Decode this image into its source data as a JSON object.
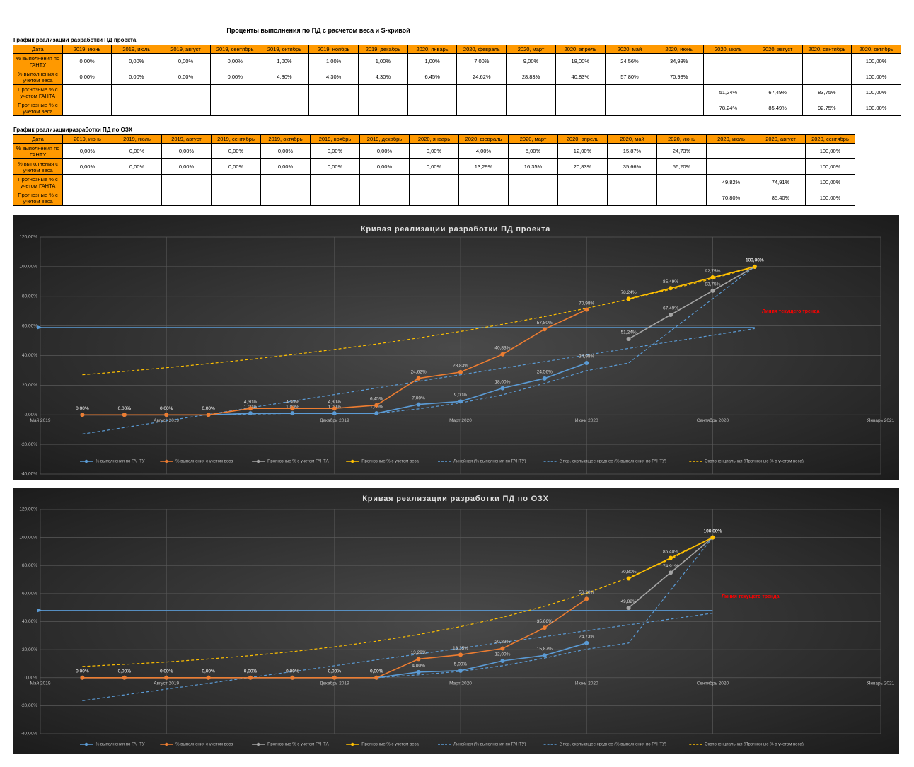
{
  "header": {
    "title": "Проценты выполнения по ПД с расчетом веса и S-кривой"
  },
  "tables": [
    {
      "title": "График реализации разработки ПД проекта",
      "header": [
        "Дата",
        "2019, июнь",
        "2019, июль",
        "2019, август",
        "2019, сентябрь",
        "2019, октябрь",
        "2019, ноябрь",
        "2019, декабрь",
        "2020, январь",
        "2020, февраль",
        "2020, март",
        "2020, апрель",
        "2020, май",
        "2020, июнь",
        "2020, июль",
        "2020, август",
        "2020, сентябрь",
        "2020, октябрь"
      ],
      "rows": [
        {
          "label": "% выполнения по ГАНТУ",
          "cells": [
            "0,00%",
            "0,00%",
            "0,00%",
            "0,00%",
            "1,00%",
            "1,00%",
            "1,00%",
            "1,00%",
            "7,00%",
            "9,00%",
            "18,00%",
            "24,56%",
            "34,98%",
            null,
            null,
            null,
            "100,00%"
          ]
        },
        {
          "label": "% выполнения с учетом веса",
          "cells": [
            "0,00%",
            "0,00%",
            "0,00%",
            "0,00%",
            "4,30%",
            "4,30%",
            "4,30%",
            "6,45%",
            "24,62%",
            "28,83%",
            "40,83%",
            "57,80%",
            "70,98%",
            null,
            null,
            null,
            "100,00%"
          ]
        },
        {
          "label": "Прогнозные % с учетом ГАНТА",
          "cells": [
            null,
            null,
            null,
            null,
            null,
            null,
            null,
            null,
            null,
            null,
            null,
            null,
            null,
            "51,24%",
            "67,49%",
            "83,75%",
            "100,00%"
          ]
        },
        {
          "label": "Прогнозные % с учетом веса",
          "cells": [
            null,
            null,
            null,
            null,
            null,
            null,
            null,
            null,
            null,
            null,
            null,
            null,
            null,
            "78,24%",
            "85,49%",
            "92,75%",
            "100,00%"
          ]
        }
      ]
    },
    {
      "title": "График реализацииразработки ПД по ОЗХ",
      "header": [
        "Дата",
        "2019, июнь",
        "2019, июль",
        "2019, август",
        "2019, сентябрь",
        "2019, октябрь",
        "2019, ноябрь",
        "2019, декабрь",
        "2020, январь",
        "2020, февраль",
        "2020, март",
        "2020, апрель",
        "2020, май",
        "2020, июнь",
        "2020, июль",
        "2020, август",
        "2020, сентябрь"
      ],
      "rows": [
        {
          "label": "% выполнения по ГАНТУ",
          "cells": [
            "0,00%",
            "0,00%",
            "0,00%",
            "0,00%",
            "0,00%",
            "0,00%",
            "0,00%",
            "0,00%",
            "4,00%",
            "5,00%",
            "12,00%",
            "15,87%",
            "24,73%",
            null,
            null,
            "100,00%"
          ]
        },
        {
          "label": "% выполнения с учетом веса",
          "cells": [
            "0,00%",
            "0,00%",
            "0,00%",
            "0,00%",
            "0,00%",
            "0,00%",
            "0,00%",
            "0,00%",
            "13,29%",
            "16,35%",
            "20,83%",
            "35,66%",
            "56,20%",
            null,
            null,
            "100,00%"
          ]
        },
        {
          "label": "Прогнозные % с учетом ГАНТА",
          "cells": [
            null,
            null,
            null,
            null,
            null,
            null,
            null,
            null,
            null,
            null,
            null,
            null,
            null,
            "49,82%",
            "74,91%",
            "100,00%"
          ]
        },
        {
          "label": "Прогнозные % с учетом веса",
          "cells": [
            null,
            null,
            null,
            null,
            null,
            null,
            null,
            null,
            null,
            null,
            null,
            null,
            null,
            "70,80%",
            "85,40%",
            "100,00%"
          ]
        }
      ]
    }
  ],
  "chart_data": [
    {
      "type": "line",
      "title": "Кривая реализации разработки ПД проекта",
      "x": [
        "2019-06",
        "2019-07",
        "2019-08",
        "2019-09",
        "2019-10",
        "2019-11",
        "2019-12",
        "2020-01",
        "2020-02",
        "2020-03",
        "2020-04",
        "2020-05",
        "2020-06",
        "2020-07",
        "2020-08",
        "2020-09",
        "2020-10"
      ],
      "xlim": [
        "2019-05",
        "2021-01"
      ],
      "xticks": [
        {
          "value": "2019-05",
          "label": "Май 2019"
        },
        {
          "value": "2019-08",
          "label": "Август 2019"
        },
        {
          "value": "2019-12",
          "label": "Декабрь 2019"
        },
        {
          "value": "2020-03",
          "label": "Март 2020"
        },
        {
          "value": "2020-06",
          "label": "Июнь 2020"
        },
        {
          "value": "2020-09",
          "label": "Сентябрь 2020"
        },
        {
          "value": "2021-01",
          "label": "Январь 2021"
        }
      ],
      "ylim": [
        -40,
        120
      ],
      "yticks": [
        {
          "value": -40,
          "label": "-40,00%"
        },
        {
          "value": -20,
          "label": "-20,00%"
        },
        {
          "value": 0,
          "label": "0,00%"
        },
        {
          "value": 20,
          "label": "20,00%"
        },
        {
          "value": 40,
          "label": "40,00%"
        },
        {
          "value": 60,
          "label": "60,00%"
        },
        {
          "value": 80,
          "label": "80,00%"
        },
        {
          "value": 100,
          "label": "100,00%"
        },
        {
          "value": 120,
          "label": "120,00%"
        }
      ],
      "grid": true,
      "reference_line": 59,
      "annotation": "Линия текущего тренда",
      "series": [
        {
          "name": "% выполнения по ГАНТУ",
          "color": "#5b9bd5",
          "values": [
            0,
            0,
            0,
            0,
            1,
            1,
            1,
            1,
            7,
            9,
            18,
            24.56,
            34.98,
            null,
            null,
            null,
            100
          ],
          "value_labels": [
            "0,00%",
            "0,00%",
            "0,00%",
            "0,00%",
            "1,00%",
            "1,00%",
            "1,00%",
            "1,00%",
            "7,00%",
            "9,00%",
            "18,00%",
            "24,56%",
            "34,98%",
            null,
            null,
            null,
            "100,00%"
          ]
        },
        {
          "name": "% выполнения с учетом веса",
          "color": "#ed7d31",
          "values": [
            0,
            0,
            0,
            0,
            4.3,
            4.3,
            4.3,
            6.45,
            24.62,
            28.83,
            40.83,
            57.8,
            70.98,
            null,
            null,
            null,
            100
          ],
          "value_labels": [
            "0,00%",
            "0,00%",
            "0,00%",
            "0,00%",
            "4,30%",
            "4,30%",
            "4,30%",
            "6,45%",
            "24,62%",
            "28,83%",
            "40,83%",
            "57,80%",
            "70,98%",
            null,
            null,
            null,
            "100,00%"
          ]
        },
        {
          "name": "Прогнозные % с учетом ГАНТА",
          "color": "#a5a5a5",
          "values": [
            null,
            null,
            null,
            null,
            null,
            null,
            null,
            null,
            null,
            null,
            null,
            null,
            null,
            51.24,
            67.49,
            83.75,
            100
          ],
          "value_labels": [
            null,
            null,
            null,
            null,
            null,
            null,
            null,
            null,
            null,
            null,
            null,
            null,
            null,
            "51,24%",
            "67,49%",
            "83,75%",
            "100,00%"
          ]
        },
        {
          "name": "Прогнозные % с учетом веса",
          "color": "#ffc000",
          "values": [
            null,
            null,
            null,
            null,
            null,
            null,
            null,
            null,
            null,
            null,
            null,
            null,
            null,
            78.24,
            85.49,
            92.75,
            100
          ],
          "value_labels": [
            null,
            null,
            null,
            null,
            null,
            null,
            null,
            null,
            null,
            null,
            null,
            null,
            null,
            "78,24%",
            "85,49%",
            "92,75%",
            "100,00%"
          ]
        },
        {
          "name": "Линейная (% выполнения по ГАНТУ)",
          "color": "#5b9bd5",
          "dashed": true,
          "values": [
            -13,
            -8.6,
            -4.1,
            0.3,
            4.8,
            9.2,
            13.7,
            18.1,
            22.6,
            27,
            31.5,
            35.9,
            40.4,
            44.8,
            49.3,
            53.7,
            58.2
          ]
        },
        {
          "name": "2 пер. скользящее среднее (% выполнения по ГАНТУ)",
          "color": "#5b9bd5",
          "dashed": true,
          "values": [
            null,
            0,
            0,
            0,
            0.5,
            1,
            1,
            1,
            4,
            8,
            13.5,
            21.28,
            29.77,
            35,
            56.7,
            78.3,
            100
          ]
        },
        {
          "name": "Экспоненциальная (Прогнозные % с учетом веса)",
          "color": "#ffc000",
          "dashed": true,
          "values": [
            27,
            29.3,
            31.8,
            34.5,
            37.4,
            40.6,
            44.1,
            47.8,
            51.9,
            56.3,
            61.1,
            66.3,
            71.9,
            78,
            84.7,
            91.9,
            99.7
          ]
        }
      ]
    },
    {
      "type": "line",
      "title": "Кривая реализации разработки ПД по ОЗХ",
      "x": [
        "2019-06",
        "2019-07",
        "2019-08",
        "2019-09",
        "2019-10",
        "2019-11",
        "2019-12",
        "2020-01",
        "2020-02",
        "2020-03",
        "2020-04",
        "2020-05",
        "2020-06",
        "2020-07",
        "2020-08",
        "2020-09"
      ],
      "xlim": [
        "2019-05",
        "2021-01"
      ],
      "xticks": [
        {
          "value": "2019-05",
          "label": "Май 2019"
        },
        {
          "value": "2019-08",
          "label": "Август 2019"
        },
        {
          "value": "2019-12",
          "label": "Декабрь 2019"
        },
        {
          "value": "2020-03",
          "label": "Март 2020"
        },
        {
          "value": "2020-06",
          "label": "Июнь 2020"
        },
        {
          "value": "2020-09",
          "label": "Сентябрь 2020"
        },
        {
          "value": "2021-01",
          "label": "Январь 2021"
        }
      ],
      "ylim": [
        -40,
        120
      ],
      "yticks": [
        {
          "value": -40,
          "label": "-40,00%"
        },
        {
          "value": -20,
          "label": "-20,00%"
        },
        {
          "value": 0,
          "label": "0,00%"
        },
        {
          "value": 20,
          "label": "20,00%"
        },
        {
          "value": 40,
          "label": "40,00%"
        },
        {
          "value": 60,
          "label": "60,00%"
        },
        {
          "value": 80,
          "label": "80,00%"
        },
        {
          "value": 100,
          "label": "100,00%"
        },
        {
          "value": 120,
          "label": "120,00%"
        }
      ],
      "grid": true,
      "reference_line": 48,
      "annotation": "Линия текущего тренда",
      "series": [
        {
          "name": "% выполнения по ГАНТУ",
          "color": "#5b9bd5",
          "values": [
            0,
            0,
            0,
            0,
            0,
            0,
            0,
            0,
            4,
            5,
            12,
            15.87,
            24.73,
            null,
            null,
            100
          ],
          "value_labels": [
            "0,00%",
            "0,00%",
            "0,00%",
            "0,00%",
            "0,00%",
            "0,00%",
            "0,00%",
            "0,00%",
            "4,00%",
            "5,00%",
            "12,00%",
            "15,87%",
            "24,73%",
            null,
            null,
            "100,00%"
          ]
        },
        {
          "name": "% выполнения с учетом веса",
          "color": "#ed7d31",
          "values": [
            0,
            0,
            0,
            0,
            0,
            0,
            0,
            0,
            13.29,
            16.35,
            20.83,
            35.66,
            56.2,
            null,
            null,
            100
          ],
          "value_labels": [
            "0,00%",
            "0,00%",
            "0,00%",
            "0,00%",
            "0,00%",
            "0,00%",
            "0,00%",
            "0,00%",
            "13,29%",
            "16,35%",
            "20,83%",
            "35,66%",
            "56,20%",
            null,
            null,
            "100,00%"
          ]
        },
        {
          "name": "Прогнозные % с учетом ГАНТА",
          "color": "#a5a5a5",
          "values": [
            null,
            null,
            null,
            null,
            null,
            null,
            null,
            null,
            null,
            null,
            null,
            null,
            null,
            49.82,
            74.91,
            100
          ],
          "value_labels": [
            null,
            null,
            null,
            null,
            null,
            null,
            null,
            null,
            null,
            null,
            null,
            null,
            null,
            "49,82%",
            "74,91%",
            "100,00%"
          ]
        },
        {
          "name": "Прогнозные % с учетом веса",
          "color": "#ffc000",
          "values": [
            null,
            null,
            null,
            null,
            null,
            null,
            null,
            null,
            null,
            null,
            null,
            null,
            null,
            70.8,
            85.4,
            100
          ],
          "value_labels": [
            null,
            null,
            null,
            null,
            null,
            null,
            null,
            null,
            null,
            null,
            null,
            null,
            null,
            "70,80%",
            "85,40%",
            "100,00%"
          ]
        },
        {
          "name": "Линейная (% выполнения по ГАНТУ)",
          "color": "#5b9bd5",
          "dashed": true,
          "values": [
            -16.5,
            -12.3,
            -8.2,
            -4,
            0.2,
            4.3,
            8.5,
            12.7,
            16.8,
            21,
            25.2,
            29.3,
            33.5,
            37.7,
            41.8,
            46
          ]
        },
        {
          "name": "2 пер. скользящее среднее (% выполнения по ГАНТУ)",
          "color": "#5b9bd5",
          "dashed": true,
          "values": [
            null,
            0,
            0,
            0,
            0,
            0,
            0,
            0,
            2,
            4.5,
            8.5,
            13.94,
            20.3,
            24.73,
            62.4,
            100
          ]
        },
        {
          "name": "Экспоненциальная (Прогнозные % с учетом веса)",
          "color": "#ffc000",
          "dashed": true,
          "values": [
            8,
            9.5,
            11.2,
            13.3,
            15.7,
            18.6,
            22,
            26,
            30.8,
            36.4,
            43.1,
            51,
            60.3,
            71.4,
            84.5,
            100
          ]
        }
      ]
    }
  ]
}
